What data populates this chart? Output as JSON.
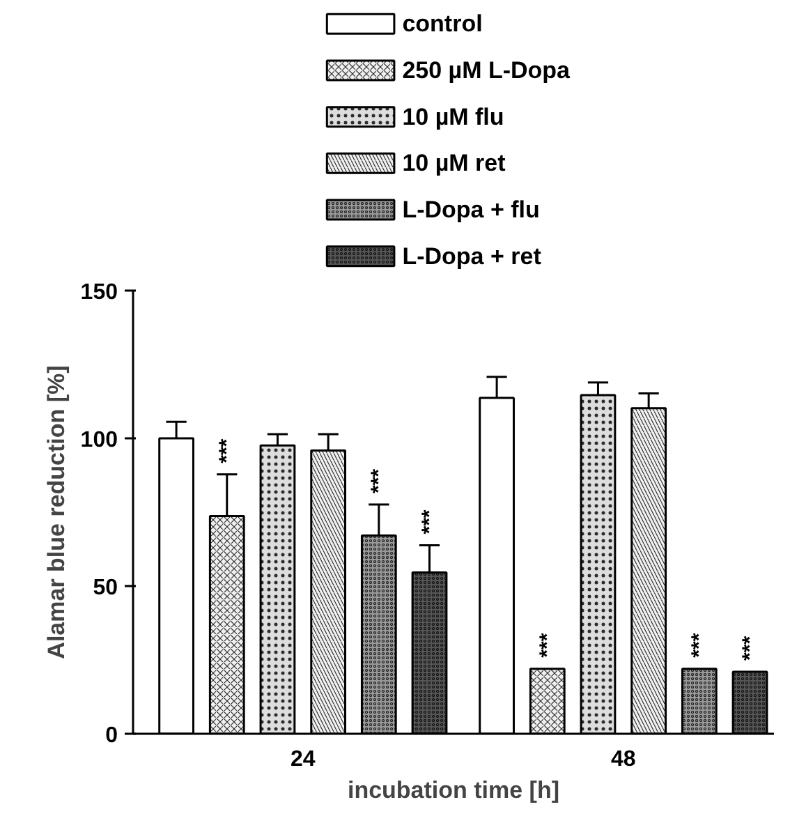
{
  "chart_data": {
    "type": "bar",
    "xlabel": "incubation time [h]",
    "ylabel": "Alamar blue reduction [%]",
    "categories": [
      "24",
      "48"
    ],
    "series": [
      {
        "name": "control",
        "color": "#ffffff",
        "values": [
          100,
          113.7
        ],
        "errors": [
          [
            100,
            105.6
          ],
          [
            113.7,
            120.8
          ]
        ]
      },
      {
        "name": "250 µM L-Dopa",
        "color": "#f0f0f0",
        "values": [
          73.7,
          22
        ],
        "errors": [
          [
            73.7,
            87.8
          ],
          null
        ],
        "value_labels": [
          "***",
          "***"
        ]
      },
      {
        "name": "10 µM flu",
        "color": "#dddddd",
        "values": [
          97.6,
          114.6
        ],
        "errors": [
          [
            97.6,
            101.4
          ],
          [
            114.6,
            118.9
          ]
        ]
      },
      {
        "name": "10 µM ret",
        "color": "#f0f0f0",
        "values": [
          95.9,
          110.2
        ],
        "errors": [
          [
            95.9,
            101.4
          ],
          [
            110.2,
            115.2
          ]
        ]
      },
      {
        "name": "L-Dopa + flu",
        "color": "#999999",
        "values": [
          67.1,
          22
        ],
        "errors": [
          [
            67.1,
            77.6
          ],
          null
        ],
        "value_labels": [
          "***",
          "***"
        ]
      },
      {
        "name": "L-Dopa + ret",
        "color": "#555555",
        "values": [
          54.6,
          21
        ],
        "errors": [
          [
            54.6,
            63.8
          ],
          null
        ],
        "value_labels": [
          "***",
          "***"
        ]
      }
    ],
    "ylim": [
      0,
      150
    ],
    "yticks": [
      0,
      50,
      100,
      150
    ],
    "grid": false,
    "legend": "top"
  }
}
